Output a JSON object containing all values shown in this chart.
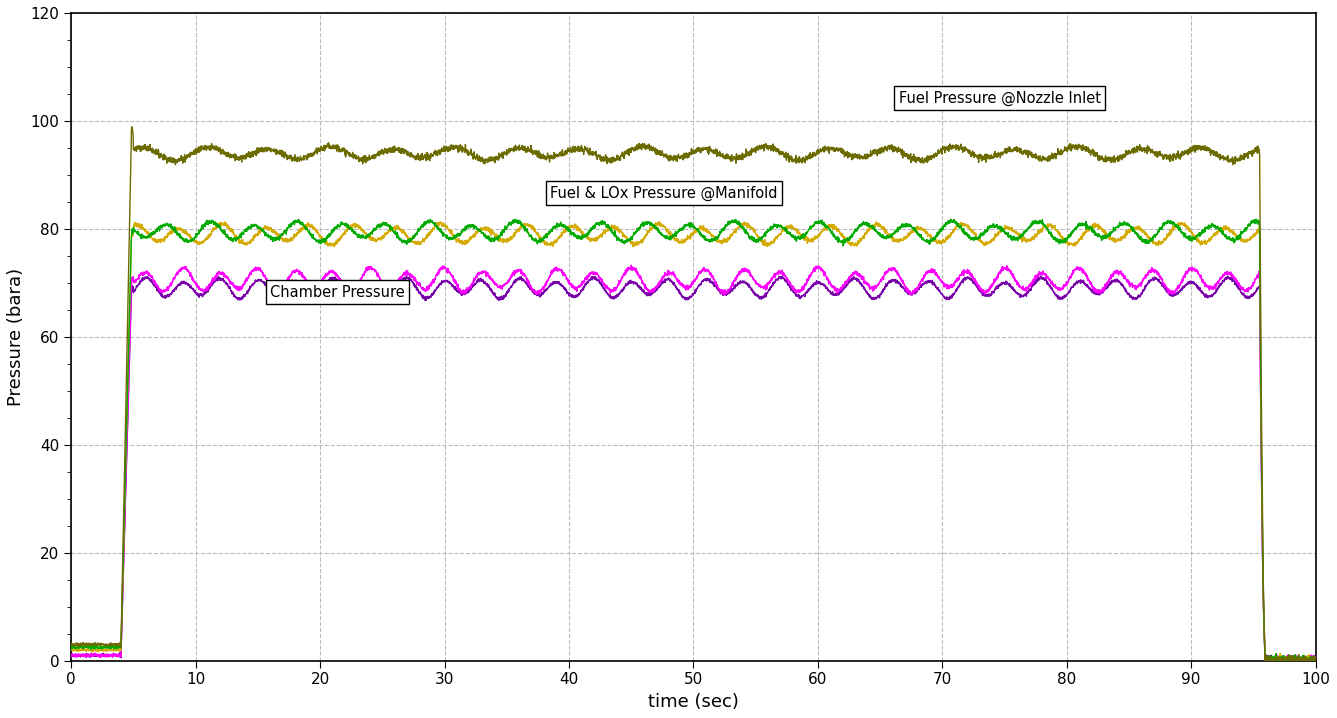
{
  "title": "",
  "xlabel": "time (sec)",
  "ylabel": "Pressure (bara)",
  "xlim": [
    0,
    100
  ],
  "ylim": [
    0,
    120
  ],
  "xticks": [
    0,
    10,
    20,
    30,
    40,
    50,
    60,
    70,
    80,
    90,
    100
  ],
  "yticks": [
    0,
    20,
    40,
    60,
    80,
    100,
    120
  ],
  "background_color": "#ffffff",
  "grid_color": "#bbbbbb",
  "lines": {
    "fuel_nozzle": {
      "color": "#6b6b00",
      "steady_mean": 94.0,
      "osc_amp": 1.0,
      "osc_period": 5.0,
      "noise_amp": 0.3,
      "start_time": 5.0,
      "end_time": 95.5,
      "peak": 99.0,
      "pre_val": 3.0,
      "lw": 1.0
    },
    "lox_manifold": {
      "color": "#d4aa00",
      "steady_mean": 79.0,
      "osc_amp": 1.5,
      "osc_period": 3.5,
      "noise_amp": 0.2,
      "start_time": 5.0,
      "end_time": 95.5,
      "peak": 79.0,
      "pre_val": 2.0,
      "lw": 1.0
    },
    "fuel_manifold": {
      "color": "#00aa00",
      "steady_mean": 79.5,
      "osc_amp": 1.5,
      "osc_period": 3.5,
      "noise_amp": 0.2,
      "start_time": 5.0,
      "end_time": 95.5,
      "peak": 79.5,
      "pre_val": 2.5,
      "lw": 1.0
    },
    "chamber": {
      "color": "#ff00ff",
      "steady_mean": 70.5,
      "osc_amp": 1.8,
      "osc_period": 3.0,
      "noise_amp": 0.2,
      "start_time": 5.0,
      "end_time": 95.5,
      "peak": 70.5,
      "pre_val": 1.0,
      "lw": 1.0
    },
    "chamber2": {
      "color": "#7700aa",
      "steady_mean": 69.0,
      "osc_amp": 1.5,
      "osc_period": 3.0,
      "noise_amp": 0.15,
      "start_time": 5.0,
      "end_time": 95.5,
      "peak": 69.0,
      "pre_val": 1.0,
      "lw": 1.0
    }
  },
  "annotations": [
    {
      "text": "Fuel Pressure @Nozzle Inlet",
      "xf": 0.665,
      "yf": 0.862,
      "fontsize": 10.5
    },
    {
      "text": "Fuel & LOx Pressure @Manifold",
      "xf": 0.385,
      "yf": 0.715,
      "fontsize": 10.5
    },
    {
      "text": "Chamber Pressure",
      "xf": 0.16,
      "yf": 0.562,
      "fontsize": 10.5
    }
  ]
}
